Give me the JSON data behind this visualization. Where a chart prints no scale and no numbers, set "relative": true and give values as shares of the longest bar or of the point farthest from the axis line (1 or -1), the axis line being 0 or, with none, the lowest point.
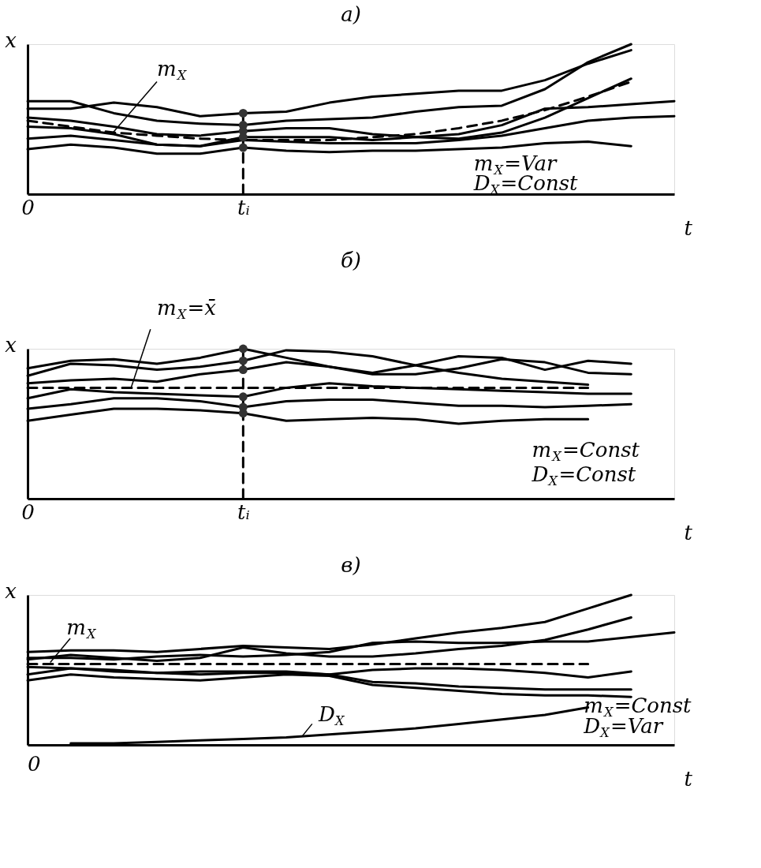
{
  "chart_data": [
    {
      "type": "line",
      "title": "а)",
      "xlabel": "t",
      "ylabel": "x",
      "relative": true,
      "categories": [
        "0",
        null,
        null,
        null,
        null,
        "tᵢ",
        null,
        null,
        null,
        null,
        null,
        null,
        null,
        null,
        null,
        null
      ],
      "grid": false,
      "line_style": "solid",
      "series": [
        {
          "color": "#000000",
          "values": [
            0.62,
            0.62,
            0.54,
            0.49,
            0.47,
            0.46,
            0.49,
            0.5,
            0.51,
            0.55,
            0.58,
            0.59,
            0.7,
            0.88,
            1.0,
            null
          ]
        },
        {
          "color": "#000000",
          "values": [
            0.57,
            0.57,
            0.61,
            0.58,
            0.52,
            0.54,
            0.55,
            0.61,
            0.65,
            0.67,
            0.69,
            0.69,
            0.76,
            0.87,
            0.96,
            null
          ]
        },
        {
          "color": "#000000",
          "values": [
            0.51,
            0.49,
            0.45,
            0.4,
            0.39,
            0.42,
            0.44,
            0.44,
            0.4,
            0.38,
            0.37,
            0.41,
            0.51,
            0.64,
            0.77,
            null
          ]
        },
        {
          "color": "#000000",
          "values": [
            0.45,
            0.44,
            0.4,
            0.33,
            0.32,
            0.38,
            0.38,
            0.38,
            0.36,
            0.38,
            0.4,
            0.46,
            0.57,
            0.58,
            0.6,
            0.62
          ]
        },
        {
          "color": "#000000",
          "values": [
            0.37,
            0.39,
            0.36,
            0.33,
            0.32,
            0.36,
            0.35,
            0.34,
            0.34,
            0.34,
            0.36,
            0.39,
            0.44,
            0.49,
            0.51,
            0.52
          ]
        },
        {
          "color": "#000000",
          "values": [
            0.3,
            0.33,
            0.31,
            0.27,
            0.27,
            0.31,
            0.29,
            0.28,
            0.29,
            0.29,
            0.3,
            0.31,
            0.34,
            0.35,
            0.32,
            null
          ]
        },
        {
          "color": "#000000",
          "line_style": "dashed",
          "values": [
            0.49,
            0.45,
            0.41,
            0.39,
            0.37,
            0.36,
            0.36,
            0.36,
            0.38,
            0.4,
            0.44,
            0.49,
            0.56,
            0.65,
            0.75,
            null
          ]
        },
        {
          "type": "line",
          "color": "#000000",
          "line_style": "dashed",
          "x": [
            "tᵢ",
            "tᵢ"
          ],
          "values": [
            0,
            0.31
          ]
        },
        {
          "type": "line",
          "color": "#000000",
          "x": [
            "tᵢ",
            "tᵢ"
          ],
          "values": [
            0.31,
            0.54
          ]
        },
        {
          "type": "scatter",
          "marker": "circle",
          "color": "#333333",
          "x": [
            "tᵢ",
            "tᵢ",
            "tᵢ",
            "tᵢ",
            "tᵢ"
          ],
          "values": [
            0.54,
            0.46,
            0.42,
            0.38,
            0.31
          ]
        }
      ],
      "annotations": [
        "m$_{X}$",
        "m$_{X}$=Var",
        "D$_{X}$=Const"
      ]
    },
    {
      "type": "line",
      "title": "б)",
      "xlabel": "t",
      "ylabel": "x",
      "relative": true,
      "categories": [
        "0",
        null,
        null,
        null,
        null,
        "tᵢ",
        null,
        null,
        null,
        null,
        null,
        null,
        null,
        null,
        null,
        null
      ],
      "grid": false,
      "line_style": "solid",
      "series": [
        {
          "color": "#000000",
          "values": [
            0.87,
            0.92,
            0.93,
            0.9,
            0.94,
            1.0,
            0.94,
            0.88,
            0.83,
            0.83,
            0.87,
            0.93,
            0.91,
            0.84,
            0.83,
            null
          ]
        },
        {
          "color": "#000000",
          "values": [
            0.82,
            0.9,
            0.89,
            0.86,
            0.88,
            0.92,
            0.99,
            0.98,
            0.95,
            0.89,
            0.84,
            0.8,
            0.78,
            0.76,
            null,
            null
          ]
        },
        {
          "color": "#000000",
          "values": [
            0.77,
            0.79,
            0.8,
            0.78,
            0.83,
            0.86,
            0.91,
            0.88,
            0.84,
            0.89,
            0.95,
            0.94,
            0.86,
            0.92,
            0.9,
            null
          ]
        },
        {
          "color": "#000000",
          "values": [
            0.67,
            0.73,
            0.71,
            0.7,
            0.69,
            0.68,
            0.74,
            0.77,
            0.75,
            0.74,
            0.73,
            0.72,
            0.71,
            0.7,
            0.7,
            null
          ]
        },
        {
          "color": "#000000",
          "values": [
            0.6,
            0.63,
            0.67,
            0.67,
            0.65,
            0.61,
            0.65,
            0.66,
            0.66,
            0.64,
            0.62,
            0.62,
            0.61,
            0.62,
            0.63,
            null
          ]
        },
        {
          "color": "#000000",
          "values": [
            0.52,
            0.56,
            0.6,
            0.6,
            0.59,
            0.57,
            0.52,
            0.53,
            0.54,
            0.53,
            0.5,
            0.52,
            0.53,
            0.53,
            null,
            null
          ]
        },
        {
          "color": "#000000",
          "line_style": "dashed",
          "values": [
            0.74,
            0.74,
            0.74,
            0.74,
            0.74,
            0.74,
            0.74,
            0.74,
            0.74,
            0.74,
            0.74,
            0.74,
            0.74,
            0.74,
            null,
            null
          ]
        },
        {
          "type": "line",
          "color": "#000000",
          "line_style": "dashed",
          "x": [
            "tᵢ",
            "tᵢ"
          ],
          "values": [
            0,
            1.0
          ]
        },
        {
          "type": "scatter",
          "marker": "circle",
          "color": "#333333",
          "x": [
            "tᵢ",
            "tᵢ",
            "tᵢ",
            "tᵢ",
            "tᵢ",
            "tᵢ"
          ],
          "values": [
            1.0,
            0.92,
            0.86,
            0.68,
            0.61,
            0.57
          ]
        }
      ],
      "annotations": [
        "m$_{X}$=x̄",
        "m$_{X}$=Const",
        "D$_{X}$=Const"
      ]
    },
    {
      "type": "line",
      "title": "в)",
      "xlabel": "t",
      "ylabel": "x",
      "relative": true,
      "categories": [
        null,
        null,
        null,
        null,
        null,
        null,
        null,
        null,
        null,
        null,
        null,
        null,
        null,
        null,
        null,
        null
      ],
      "grid": false,
      "line_style": "solid",
      "series": [
        {
          "color": "#000000",
          "values": [
            0.62,
            0.63,
            0.63,
            0.62,
            0.64,
            0.66,
            0.65,
            0.64,
            0.67,
            0.71,
            0.75,
            0.78,
            0.82,
            0.91,
            1.0,
            null
          ]
        },
        {
          "color": "#000000",
          "values": [
            0.57,
            0.6,
            0.58,
            0.56,
            0.58,
            0.65,
            0.61,
            0.59,
            0.59,
            0.61,
            0.64,
            0.66,
            0.7,
            0.77,
            0.85,
            null
          ]
        },
        {
          "color": "#000000",
          "values": [
            0.58,
            0.58,
            0.57,
            0.59,
            0.6,
            0.59,
            0.6,
            0.62,
            0.68,
            0.69,
            0.68,
            0.68,
            0.69,
            0.69,
            0.72,
            0.75
          ]
        },
        {
          "color": "#000000",
          "values": [
            0.52,
            0.51,
            0.5,
            0.48,
            0.47,
            0.48,
            0.48,
            0.47,
            0.5,
            0.51,
            0.51,
            0.5,
            0.48,
            0.45,
            0.49,
            null
          ]
        },
        {
          "color": "#000000",
          "values": [
            0.47,
            0.51,
            0.49,
            0.48,
            0.49,
            0.49,
            0.49,
            0.47,
            0.42,
            0.41,
            0.39,
            0.38,
            0.37,
            0.37,
            0.37,
            null
          ]
        },
        {
          "color": "#000000",
          "values": [
            0.43,
            0.47,
            0.45,
            0.44,
            0.43,
            0.45,
            0.47,
            0.46,
            0.4,
            0.38,
            0.36,
            0.34,
            0.33,
            0.33,
            0.32,
            null
          ]
        },
        {
          "color": "#000000",
          "values": [
            null,
            0.01,
            0.01,
            0.02,
            0.03,
            0.04,
            0.05,
            0.07,
            0.09,
            0.11,
            0.14,
            0.17,
            0.2,
            0.25,
            null,
            null
          ]
        },
        {
          "color": "#000000",
          "line_style": "dashed",
          "values": [
            0.54,
            0.54,
            0.54,
            0.54,
            0.54,
            0.54,
            0.54,
            0.54,
            0.54,
            0.54,
            0.54,
            0.54,
            0.54,
            0.54,
            null,
            null
          ]
        }
      ],
      "annotations": [
        "m$_{X}$",
        "D$_{X}$",
        "m$_{X}$=Const",
        "D$_{X}$=Var",
        "0"
      ]
    }
  ]
}
